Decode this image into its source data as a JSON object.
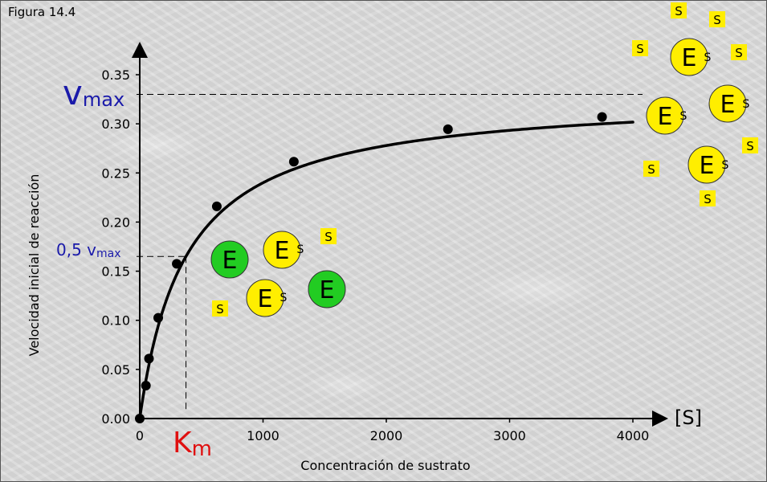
{
  "figure_label": "Figura 14.4",
  "chart_data": {
    "type": "line",
    "title": "",
    "xlabel": "Concentración de sustrato",
    "ylabel": "Velocidad inicial de reacción",
    "x_axis_symbol": "[S]",
    "xlim": [
      0,
      4000
    ],
    "ylim": [
      0,
      0.35
    ],
    "x_ticks": [
      0,
      1000,
      2000,
      3000,
      4000
    ],
    "y_ticks": [
      "0.00",
      "0.05",
      "0.10",
      "0.15",
      "0.20",
      "0.25",
      "0.30",
      "0.35"
    ],
    "vmax": 0.33,
    "km": 375,
    "series": [
      {
        "x": [
          0,
          50,
          75,
          150,
          300,
          625,
          1250,
          2500,
          3750
        ],
        "y": [
          0,
          0.0335,
          0.061,
          0.1025,
          0.1575,
          0.216,
          0.2615,
          0.2945,
          0.307
        ]
      }
    ],
    "curve_end_x": 4000,
    "annotations": {
      "vmax_label": "v",
      "vmax_sub": "max",
      "half_vmax_label": "0,5 v",
      "half_vmax_sub": "max",
      "km_label": "K",
      "km_sub": "m"
    },
    "colors": {
      "vmax": "#1a1aaa",
      "half_vmax": "#1a1aaa",
      "km": "#e01010",
      "curve": "#000000",
      "free_enzyme": "#22cc22",
      "bound_enzyme": "#ffee00",
      "substrate": "#ffee00"
    }
  },
  "illustration": {
    "enzyme_letter": "E",
    "substrate_letter": "S"
  }
}
